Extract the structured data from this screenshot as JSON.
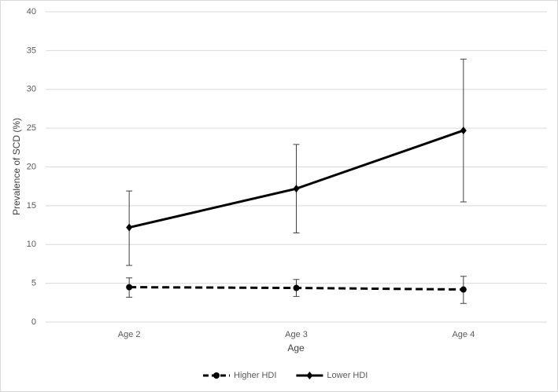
{
  "chart_data": {
    "type": "line",
    "x_label": "Age",
    "y_label": "Prevalence of SCD (%)",
    "categories": [
      "Age 2",
      "Age 3",
      "Age 4"
    ],
    "series": [
      {
        "name": "Higher HDI",
        "color": "#000000",
        "line_style": "dashed",
        "marker": "circle",
        "values": [
          4.5,
          4.4,
          4.2
        ],
        "ci_low": [
          3.2,
          3.3,
          2.4
        ],
        "ci_high": [
          5.7,
          5.5,
          5.9
        ]
      },
      {
        "name": "Lower HDI",
        "color": "#000000",
        "line_style": "solid",
        "marker": "diamond",
        "values": [
          12.2,
          17.2,
          24.7
        ],
        "ci_low": [
          7.3,
          11.5,
          15.5
        ],
        "ci_high": [
          16.9,
          22.9,
          33.9
        ]
      }
    ],
    "ylim": [
      0,
      40
    ],
    "yticks": [
      0,
      5,
      10,
      15,
      20,
      25,
      30,
      35,
      40
    ],
    "grid": true,
    "legend": "bottom"
  }
}
